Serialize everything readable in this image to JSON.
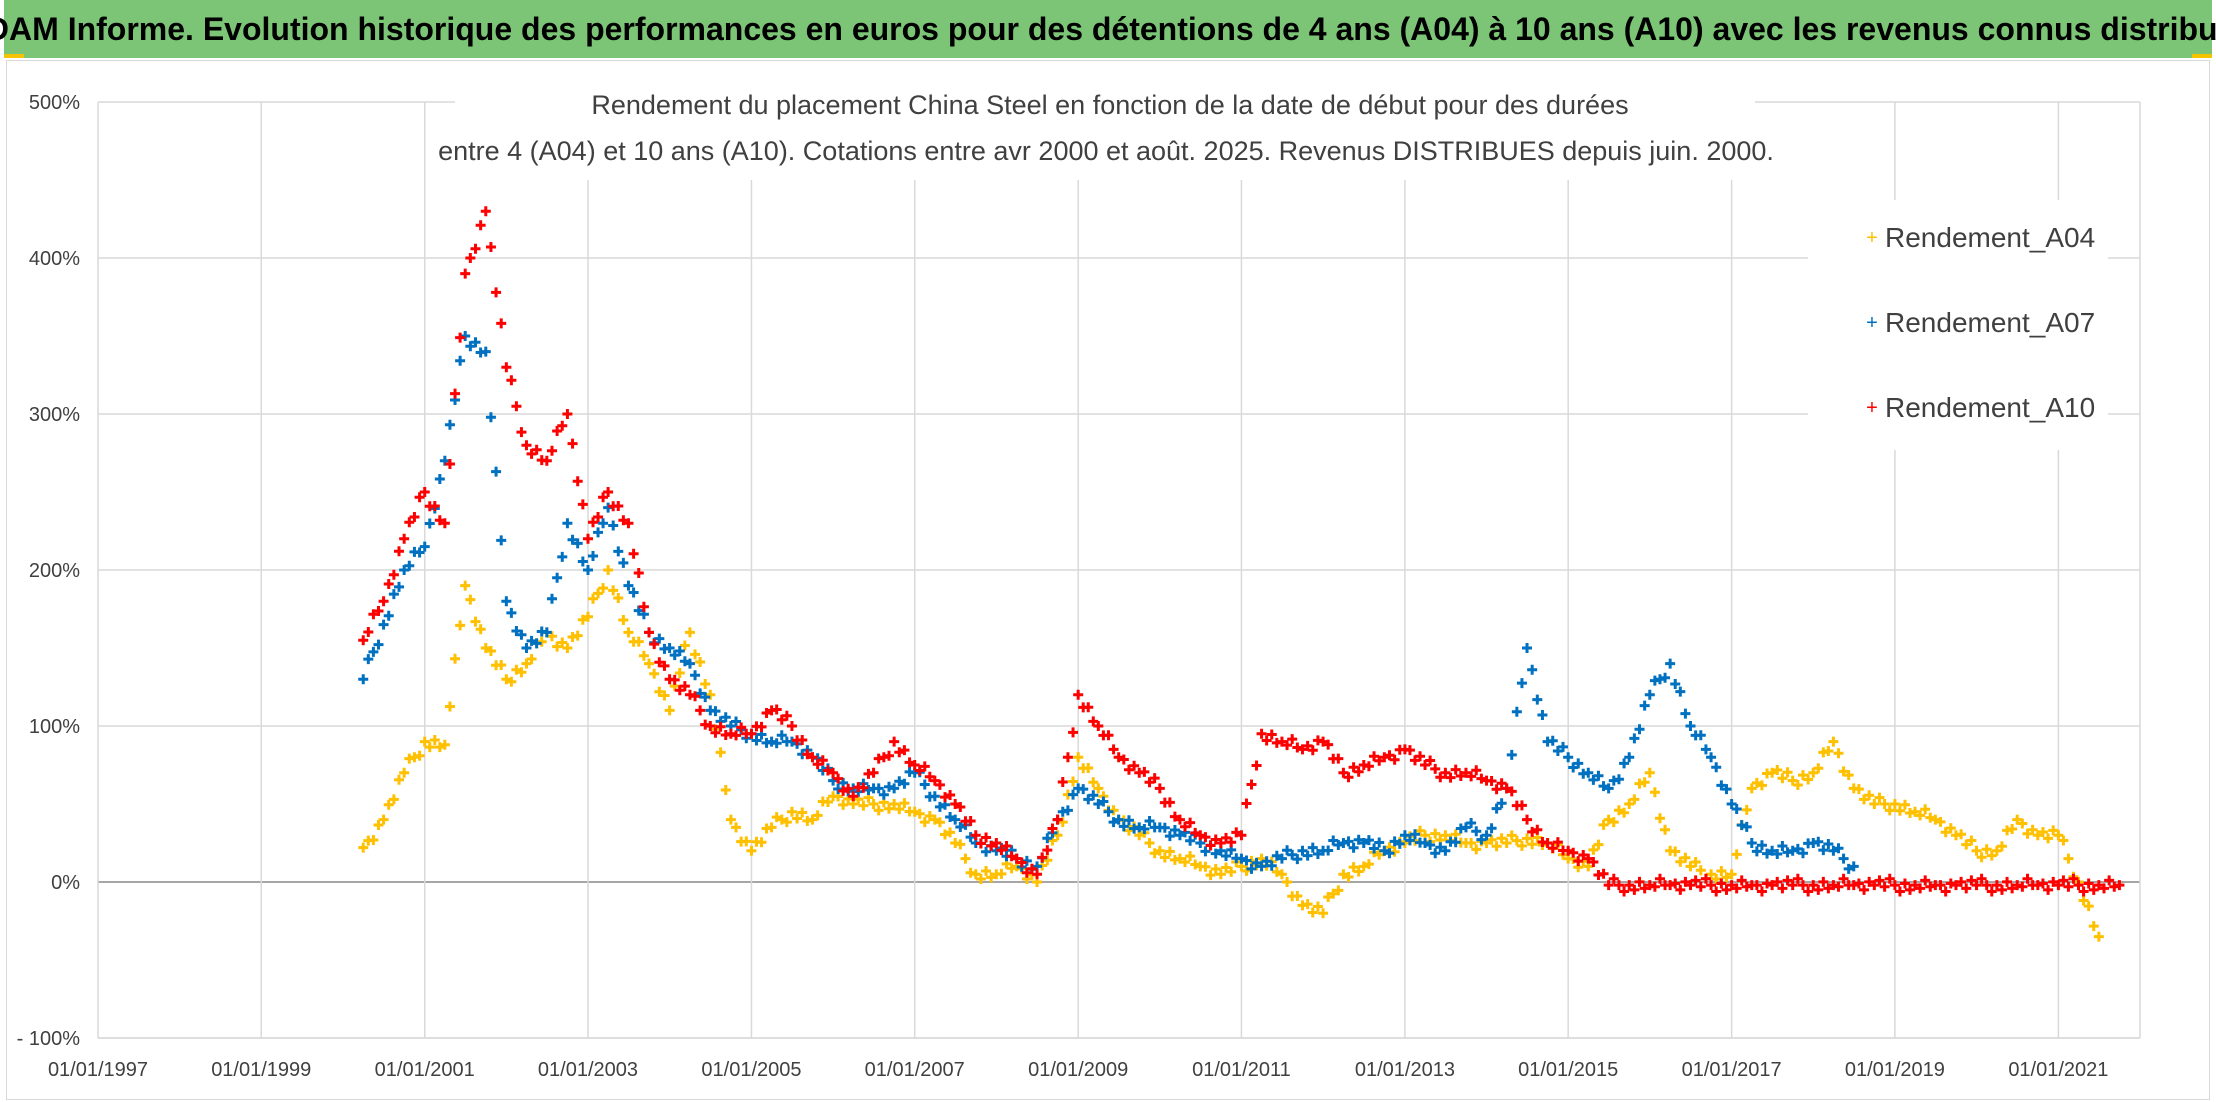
{
  "banner": {
    "title": "ADAM Informe. Evolution historique des performances en euros pour des détentions de 4 ans (A04) à 10 ans (A10) avec les revenus connus distribués"
  },
  "colors": {
    "banner_bg": "#7cc576",
    "A04": "#ffc000",
    "A07": "#0070c0",
    "A10": "#ff0000",
    "grid": "#d9d9d9",
    "zero_line": "#a6a6a6"
  },
  "chart_data": {
    "type": "scatter",
    "subtitle_line1": "Rendement du placement China Steel  en fonction de la date de début pour des durées",
    "subtitle_line2": "entre 4 (A04) et 10 ans (A10). Cotations entre avr 2000 et août. 2025. Revenus DISTRIBUES depuis juin. 2000.",
    "x_ticks": [
      "01/01/1997",
      "01/01/1999",
      "01/01/2001",
      "01/01/2003",
      "01/01/2005",
      "01/01/2007",
      "01/01/2009",
      "01/01/2011",
      "01/01/2013",
      "01/01/2015",
      "01/01/2017",
      "01/01/2019",
      "01/01/2021"
    ],
    "y_ticks": [
      "500%",
      "400%",
      "300%",
      "200%",
      "100%",
      "0%",
      "- 100%"
    ],
    "xlim": [
      "1997-01-01",
      "2022-01-01"
    ],
    "ylim": [
      -100,
      500
    ],
    "grid": true,
    "legend_position": "top-right",
    "marker": "+",
    "series": [
      {
        "name": "Rendement_A04",
        "x": [
          "2000-04",
          "2000-07",
          "2000-10",
          "2001-01",
          "2001-04",
          "2001-07",
          "2001-10",
          "2002-01",
          "2002-04",
          "2002-07",
          "2002-10",
          "2003-01",
          "2003-04",
          "2003-07",
          "2003-10",
          "2004-01",
          "2004-04",
          "2004-07",
          "2004-10",
          "2005-01",
          "2005-04",
          "2005-07",
          "2005-10",
          "2006-01",
          "2006-04",
          "2006-07",
          "2006-10",
          "2007-01",
          "2007-04",
          "2007-07",
          "2007-10",
          "2008-01",
          "2008-04",
          "2008-07",
          "2008-10",
          "2009-01",
          "2009-04",
          "2009-07",
          "2009-10",
          "2010-01",
          "2010-04",
          "2010-07",
          "2010-10",
          "2011-01",
          "2011-04",
          "2011-07",
          "2011-10",
          "2012-01",
          "2012-04",
          "2012-07",
          "2012-10",
          "2013-01",
          "2013-04",
          "2013-07",
          "2013-10",
          "2014-01",
          "2014-04",
          "2014-07",
          "2014-10",
          "2015-01",
          "2015-04",
          "2015-07",
          "2015-10",
          "2016-01",
          "2016-04",
          "2016-07",
          "2016-10",
          "2017-01",
          "2017-04",
          "2017-07",
          "2017-10",
          "2018-01",
          "2018-04",
          "2018-07",
          "2018-10",
          "2019-01",
          "2019-04",
          "2019-07",
          "2019-10",
          "2020-01",
          "2020-04",
          "2020-07",
          "2020-10",
          "2021-01",
          "2021-04",
          "2021-07"
        ],
        "y": [
          22,
          40,
          70,
          90,
          88,
          190,
          150,
          130,
          140,
          160,
          150,
          170,
          200,
          160,
          140,
          110,
          160,
          120,
          40,
          20,
          35,
          45,
          40,
          55,
          50,
          50,
          50,
          45,
          40,
          25,
          5,
          5,
          10,
          0,
          30,
          80,
          60,
          40,
          30,
          20,
          15,
          10,
          5,
          10,
          15,
          5,
          -15,
          -20,
          5,
          10,
          20,
          25,
          30,
          30,
          25,
          25,
          25,
          28,
          25,
          15,
          10,
          40,
          50,
          70,
          20,
          10,
          5,
          5,
          60,
          70,
          65,
          70,
          90,
          60,
          50,
          50,
          45,
          40,
          30,
          20,
          20,
          40,
          30,
          30,
          0,
          -35
        ]
      },
      {
        "name": "Rendement_A07",
        "x": [
          "2000-04",
          "2000-07",
          "2000-10",
          "2001-01",
          "2001-04",
          "2001-07",
          "2001-10",
          "2002-01",
          "2002-04",
          "2002-07",
          "2002-10",
          "2003-01",
          "2003-04",
          "2003-07",
          "2003-10",
          "2004-01",
          "2004-04",
          "2004-07",
          "2004-10",
          "2005-01",
          "2005-04",
          "2005-07",
          "2005-10",
          "2006-01",
          "2006-04",
          "2006-07",
          "2006-10",
          "2007-01",
          "2007-04",
          "2007-07",
          "2007-10",
          "2008-01",
          "2008-04",
          "2008-07",
          "2008-10",
          "2009-01",
          "2009-04",
          "2009-07",
          "2009-10",
          "2010-01",
          "2010-04",
          "2010-07",
          "2010-10",
          "2011-01",
          "2011-04",
          "2011-07",
          "2011-10",
          "2012-01",
          "2012-04",
          "2012-07",
          "2012-10",
          "2013-01",
          "2013-04",
          "2013-07",
          "2013-10",
          "2014-01",
          "2014-04",
          "2014-07",
          "2014-10",
          "2015-01",
          "2015-04",
          "2015-07",
          "2015-10",
          "2016-01",
          "2016-04",
          "2016-07",
          "2016-10",
          "2017-01",
          "2017-04",
          "2017-07",
          "2017-10",
          "2018-01",
          "2018-04",
          "2018-07"
        ],
        "y": [
          130,
          165,
          200,
          215,
          270,
          350,
          340,
          180,
          150,
          160,
          230,
          200,
          240,
          190,
          160,
          150,
          140,
          110,
          100,
          95,
          90,
          90,
          80,
          65,
          60,
          60,
          60,
          70,
          55,
          40,
          25,
          20,
          15,
          10,
          40,
          60,
          50,
          40,
          35,
          35,
          30,
          25,
          20,
          15,
          10,
          15,
          20,
          20,
          25,
          25,
          20,
          30,
          25,
          20,
          35,
          30,
          60,
          150,
          90,
          80,
          70,
          60,
          80,
          120,
          140,
          100,
          80,
          50,
          25,
          20,
          20,
          25,
          20,
          10
        ]
      },
      {
        "name": "Rendement_A10",
        "x": [
          "2000-04",
          "2000-07",
          "2000-10",
          "2001-01",
          "2001-04",
          "2001-07",
          "2001-10",
          "2002-01",
          "2002-04",
          "2002-07",
          "2002-10",
          "2003-01",
          "2003-04",
          "2003-07",
          "2003-10",
          "2004-01",
          "2004-04",
          "2004-07",
          "2004-10",
          "2005-01",
          "2005-04",
          "2005-07",
          "2005-10",
          "2006-01",
          "2006-04",
          "2006-07",
          "2006-10",
          "2007-01",
          "2007-04",
          "2007-07",
          "2007-10",
          "2008-01",
          "2008-04",
          "2008-07",
          "2008-10",
          "2009-01",
          "2009-04",
          "2009-07",
          "2009-10",
          "2010-01",
          "2010-04",
          "2010-07",
          "2010-10",
          "2011-01",
          "2011-04",
          "2011-07",
          "2011-10",
          "2012-01",
          "2012-04",
          "2012-07",
          "2012-10",
          "2013-01",
          "2013-04",
          "2013-07",
          "2013-10",
          "2014-01",
          "2014-04",
          "2014-07",
          "2014-10",
          "2015-01",
          "2015-04",
          "2015-07",
          "2015-10",
          "2016-01",
          "2016-04",
          "2016-07",
          "2016-10",
          "2017-01",
          "2017-04",
          "2017-07",
          "2017-10",
          "2018-01",
          "2018-04",
          "2018-07",
          "2018-10",
          "2019-01",
          "2019-04",
          "2019-07",
          "2019-10",
          "2020-01",
          "2020-04",
          "2020-07",
          "2020-10",
          "2021-01",
          "2021-04",
          "2021-07",
          "2021-10"
        ],
        "y": [
          155,
          180,
          220,
          250,
          230,
          390,
          430,
          330,
          280,
          270,
          300,
          220,
          250,
          230,
          160,
          130,
          120,
          100,
          95,
          95,
          110,
          100,
          80,
          70,
          55,
          70,
          90,
          75,
          65,
          50,
          30,
          25,
          15,
          5,
          40,
          120,
          100,
          80,
          70,
          60,
          40,
          30,
          25,
          30,
          95,
          90,
          85,
          90,
          70,
          75,
          80,
          85,
          75,
          70,
          70,
          65,
          60,
          40,
          25,
          20,
          15,
          -2,
          -2,
          -2,
          -2,
          -2,
          -2,
          -2,
          -2,
          -2,
          -2,
          -2,
          -2,
          -2,
          -2,
          -2,
          -2,
          -2,
          -2,
          -2,
          -2,
          -2,
          -2,
          -2,
          -2,
          -2,
          -2
        ]
      }
    ]
  }
}
